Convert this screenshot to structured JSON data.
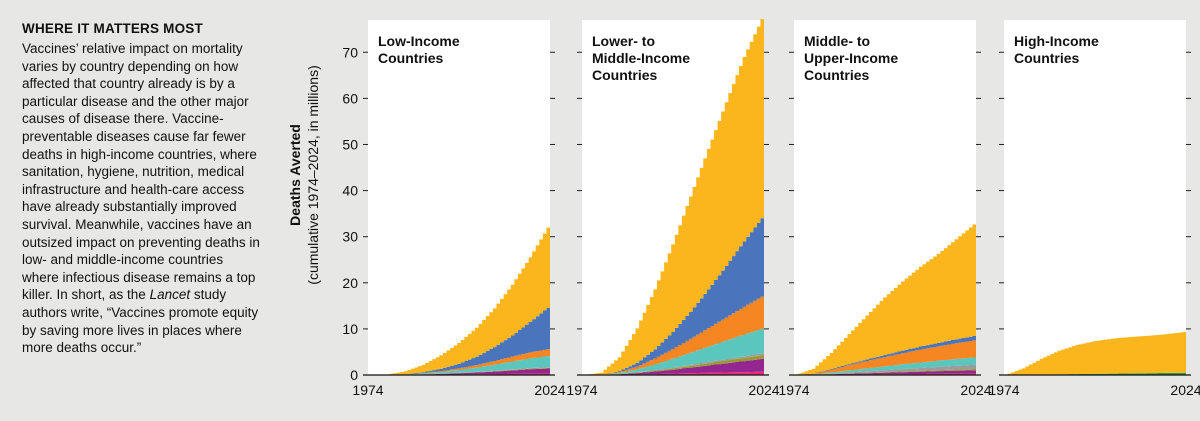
{
  "sidebar": {
    "heading": "WHERE IT MATTERS MOST",
    "body_before_italic": "Vaccines’ relative impact on mortality varies by country depending on how affected that country already is by a particular disease and the other major causes of disease there. Vac­cine-preventable diseases cause far fewer deaths in high-income coun­tries, where sanitation, hygiene, nutrition, medical infrastructure and health-care access have already substantially improved survival. Meanwhile, vaccines have an out­sized impact on preventing deaths in low- and middle-income countries where infectious disease remains a top killer. In short, as the ",
    "body_italic": "Lancet",
    "body_after_italic": " study authors write, “Vaccines pro­mote equity by saving more lives in places where more deaths occur.”"
  },
  "chart_data": {
    "type": "area",
    "stacked": true,
    "ylabel": "Deaths Averted",
    "ylabel_sub": "(cumulative 1974–2024, in millions)",
    "ylim": [
      0,
      77
    ],
    "yticks": [
      0,
      10,
      20,
      30,
      40,
      50,
      60,
      70
    ],
    "xlim": [
      1974,
      2024
    ],
    "xticks": [
      1974,
      2024
    ],
    "colors": {
      "yellow": "#fbb61e",
      "blue": "#4a74bb",
      "orange": "#f58621",
      "teal": "#5bc6bd",
      "purple": "#93278f",
      "olive": "#9a9a35",
      "gray": "#9c9c9c",
      "pink": "#ec2c7a",
      "green": "#2e9b47"
    },
    "layer_order": [
      "pink",
      "purple",
      "olive",
      "gray",
      "teal",
      "orange",
      "blue",
      "green",
      "yellow"
    ],
    "panels": [
      {
        "title_lines": [
          "Low-Income",
          "Countries"
        ],
        "x": [
          1974,
          1979,
          1984,
          1989,
          1994,
          1999,
          2004,
          2009,
          2014,
          2019,
          2024
        ],
        "layers": {
          "pink": [
            0,
            0,
            0.02,
            0.05,
            0.08,
            0.12,
            0.16,
            0.2,
            0.24,
            0.28,
            0.3
          ],
          "purple": [
            0,
            0,
            0.03,
            0.08,
            0.15,
            0.25,
            0.38,
            0.55,
            0.75,
            0.95,
            1.1
          ],
          "olive": [
            0,
            0,
            0.01,
            0.02,
            0.04,
            0.06,
            0.08,
            0.1,
            0.12,
            0.14,
            0.15
          ],
          "gray": [
            0,
            0,
            0.01,
            0.02,
            0.04,
            0.06,
            0.08,
            0.1,
            0.12,
            0.14,
            0.15
          ],
          "teal": [
            0,
            0,
            0.05,
            0.15,
            0.35,
            0.6,
            0.9,
            1.3,
            1.7,
            2.1,
            2.4
          ],
          "orange": [
            0,
            0,
            0.03,
            0.08,
            0.2,
            0.35,
            0.55,
            0.8,
            1.05,
            1.3,
            1.5
          ],
          "blue": [
            0,
            0,
            0.05,
            0.2,
            0.5,
            1.0,
            1.8,
            3.0,
            4.6,
            6.6,
            9.0
          ],
          "green": [
            0,
            0,
            0,
            0,
            0,
            0,
            0,
            0,
            0,
            0,
            0
          ],
          "yellow": [
            0,
            0.1,
            0.6,
            1.6,
            2.9,
            4.5,
            6.3,
            8.4,
            11.0,
            14.0,
            17.4
          ]
        }
      },
      {
        "title_lines": [
          "Lower- to",
          "Middle-Income",
          "Countries"
        ],
        "x": [
          1974,
          1979,
          1984,
          1989,
          1994,
          1999,
          2004,
          2009,
          2014,
          2019,
          2024
        ],
        "layers": {
          "pink": [
            0,
            0,
            0.05,
            0.12,
            0.2,
            0.3,
            0.4,
            0.48,
            0.55,
            0.62,
            0.7
          ],
          "purple": [
            0,
            0,
            0.1,
            0.3,
            0.55,
            0.85,
            1.2,
            1.6,
            2.0,
            2.4,
            2.8
          ],
          "olive": [
            0,
            0,
            0.05,
            0.12,
            0.2,
            0.3,
            0.4,
            0.5,
            0.6,
            0.7,
            0.8
          ],
          "gray": [
            0,
            0,
            0.03,
            0.08,
            0.13,
            0.18,
            0.23,
            0.28,
            0.32,
            0.36,
            0.4
          ],
          "teal": [
            0,
            0,
            0.2,
            0.6,
            1.2,
            1.9,
            2.6,
            3.3,
            4.0,
            4.7,
            5.3
          ],
          "orange": [
            0,
            0,
            0.2,
            0.6,
            1.3,
            2.1,
            3.0,
            4.0,
            5.0,
            6.0,
            7.0
          ],
          "blue": [
            0,
            0,
            0.2,
            0.8,
            2.0,
            3.7,
            5.9,
            8.4,
            11.2,
            14.2,
            17.0
          ],
          "green": [
            0,
            0,
            0,
            0,
            0,
            0,
            0,
            0,
            0,
            0,
            0
          ],
          "yellow": [
            0,
            0.5,
            3.0,
            7.5,
            13.0,
            19.0,
            25.0,
            30.5,
            35.5,
            40.0,
            43.2
          ]
        }
      },
      {
        "title_lines": [
          "Middle- to",
          "Upper-Income",
          "Countries"
        ],
        "x": [
          1974,
          1979,
          1984,
          1989,
          1994,
          1999,
          2004,
          2009,
          2014,
          2019,
          2024
        ],
        "layers": {
          "pink": [
            0,
            0.02,
            0.06,
            0.1,
            0.13,
            0.16,
            0.19,
            0.22,
            0.25,
            0.28,
            0.3
          ],
          "purple": [
            0,
            0.03,
            0.1,
            0.18,
            0.26,
            0.34,
            0.42,
            0.5,
            0.58,
            0.65,
            0.7
          ],
          "olive": [
            0,
            0.02,
            0.05,
            0.08,
            0.11,
            0.14,
            0.17,
            0.2,
            0.23,
            0.26,
            0.3
          ],
          "gray": [
            0,
            0.03,
            0.1,
            0.2,
            0.3,
            0.4,
            0.5,
            0.6,
            0.7,
            0.8,
            0.9
          ],
          "teal": [
            0,
            0.05,
            0.25,
            0.45,
            0.65,
            0.85,
            1.05,
            1.2,
            1.35,
            1.5,
            1.6
          ],
          "orange": [
            0,
            0.15,
            0.6,
            1.1,
            1.6,
            2.0,
            2.4,
            2.8,
            3.1,
            3.4,
            3.7
          ],
          "blue": [
            0,
            0.05,
            0.15,
            0.25,
            0.35,
            0.45,
            0.55,
            0.65,
            0.75,
            0.85,
            0.95
          ],
          "green": [
            0,
            0,
            0,
            0,
            0,
            0,
            0,
            0,
            0,
            0,
            0
          ],
          "yellow": [
            0,
            1.0,
            3.5,
            6.5,
            9.5,
            12.5,
            15.0,
            17.3,
            19.3,
            21.7,
            24.2
          ]
        }
      },
      {
        "title_lines": [
          "High-Income",
          "Countries"
        ],
        "x": [
          1974,
          1979,
          1984,
          1989,
          1994,
          1999,
          2004,
          2009,
          2014,
          2019,
          2024
        ],
        "layers": {
          "pink": [
            0,
            0,
            0,
            0,
            0,
            0,
            0,
            0,
            0,
            0,
            0
          ],
          "purple": [
            0,
            0,
            0,
            0,
            0,
            0,
            0,
            0,
            0,
            0,
            0
          ],
          "olive": [
            0,
            0,
            0,
            0,
            0,
            0,
            0,
            0,
            0,
            0,
            0
          ],
          "gray": [
            0,
            0,
            0,
            0,
            0,
            0,
            0,
            0,
            0,
            0,
            0
          ],
          "teal": [
            0,
            0,
            0,
            0,
            0,
            0,
            0,
            0,
            0,
            0,
            0
          ],
          "orange": [
            0,
            0,
            0,
            0,
            0,
            0,
            0,
            0,
            0,
            0,
            0
          ],
          "blue": [
            0,
            0,
            0,
            0,
            0,
            0,
            0,
            0,
            0,
            0,
            0
          ],
          "green": [
            0,
            0.05,
            0.1,
            0.15,
            0.2,
            0.25,
            0.3,
            0.35,
            0.4,
            0.45,
            0.5
          ],
          "yellow": [
            0,
            1.4,
            3.4,
            5.1,
            6.3,
            7.1,
            7.6,
            7.9,
            8.1,
            8.4,
            8.8
          ]
        }
      }
    ]
  }
}
